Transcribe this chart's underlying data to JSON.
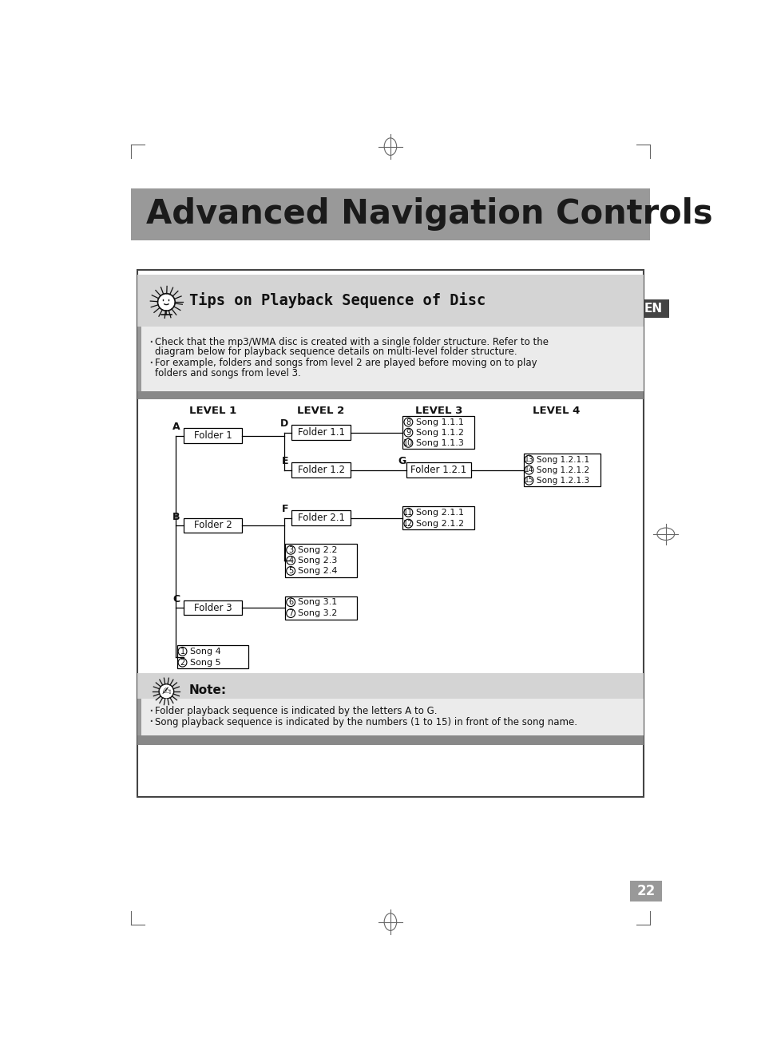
{
  "title": "Advanced Navigation Controls",
  "title_bg": "#999999",
  "page_bg": "#ffffff",
  "tips_title": "Tips on Playback Sequence of Disc",
  "tips_bullet1_line1": "Check that the mp3/WMA disc is created with a single folder structure. Refer to the",
  "tips_bullet1_line2": "diagram below for playback sequence details on multi-level folder structure.",
  "tips_bullet2_line1": "For example, folders and songs from level 2 are played before moving on to play",
  "tips_bullet2_line2": "folders and songs from level 3.",
  "note_title": "Note:",
  "note_bullet1": "Folder playback sequence is indicated by the letters A to G.",
  "note_bullet2": "Song playback sequence is indicated by the numbers (1 to 15) in front of the song name.",
  "level_labels": [
    "LEVEL 1",
    "LEVEL 2",
    "LEVEL 3",
    "LEVEL 4"
  ],
  "page_number": "22",
  "gray_dark": "#888888",
  "gray_mid": "#999999",
  "gray_light": "#d4d4d4",
  "gray_vlight": "#ebebeb",
  "box_edge": "#000000",
  "box_fill": "#ffffff",
  "text_dark": "#111111",
  "en_bg": "#333333"
}
